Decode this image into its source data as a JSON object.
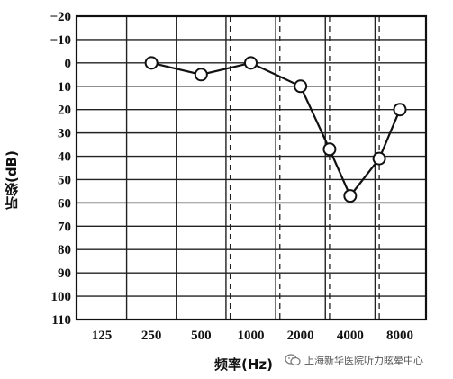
{
  "chart_data": {
    "type": "line",
    "title": "",
    "xlabel": "频率(Hz)",
    "ylabel": "听级(dB)",
    "y_axis_inverted": true,
    "ylim": [
      -20,
      110
    ],
    "yticks": [
      -20,
      -10,
      0,
      10,
      20,
      30,
      40,
      50,
      60,
      70,
      80,
      90,
      100,
      110
    ],
    "x_tick_labels": [
      "125",
      "250",
      "500",
      "1000",
      "2000",
      "4000",
      "8000"
    ],
    "x_scale": "log2 (octave)",
    "dashed_gridlines_at_hz": [
      750,
      1500,
      3000,
      6000
    ],
    "marker": "open-circle",
    "grid": true,
    "series": [
      {
        "x": [
          250,
          500,
          1000,
          2000,
          3000,
          4000,
          6000,
          8000
        ],
        "y": [
          0,
          5,
          0,
          10,
          37,
          57,
          41,
          20
        ]
      }
    ]
  },
  "watermark": {
    "text": "上海新华医院听力眩晕中心",
    "icon": "wechat-icon"
  }
}
